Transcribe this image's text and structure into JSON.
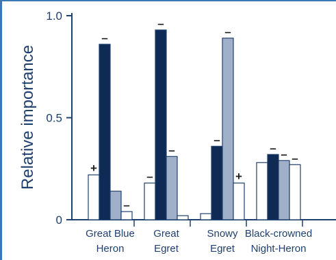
{
  "chart_data": {
    "type": "bar",
    "title": "",
    "xlabel": "",
    "ylabel": "Relative importance",
    "ylim": [
      0,
      1.0
    ],
    "yticks": [
      {
        "value": 0,
        "label": "0"
      },
      {
        "value": 0.5,
        "label": "0.5"
      },
      {
        "value": 1.0,
        "label": "1.0"
      }
    ],
    "grid": false,
    "categories": [
      {
        "line1": "Great Blue",
        "line2": "Heron"
      },
      {
        "line1": "Great",
        "line2": "Egret"
      },
      {
        "line1": "Snowy",
        "line2": "Egret"
      },
      {
        "line1": "Black-crowned",
        "line2": "Night-Heron"
      }
    ],
    "series": [
      {
        "fill": "#ffffff",
        "values": [
          0.22,
          0.18,
          0.03,
          0.28
        ],
        "signs": [
          "+",
          "–",
          "",
          ""
        ]
      },
      {
        "fill": "#0e2a55",
        "values": [
          0.86,
          0.93,
          0.36,
          0.32
        ],
        "signs": [
          "–",
          "–",
          "–",
          "–"
        ]
      },
      {
        "fill": "#9fb0c8",
        "values": [
          0.14,
          0.31,
          0.89,
          0.29
        ],
        "signs": [
          "",
          "–",
          "–",
          "–"
        ]
      },
      {
        "fill": "#ffffff",
        "values": [
          0.04,
          0.02,
          0.18,
          0.27
        ],
        "signs": [
          "–",
          "",
          "+",
          "–"
        ]
      }
    ],
    "colors": {
      "axis": "#1f3f6e",
      "bar_stroke": "#1f3f6e",
      "frame": "#3a78b5"
    }
  }
}
